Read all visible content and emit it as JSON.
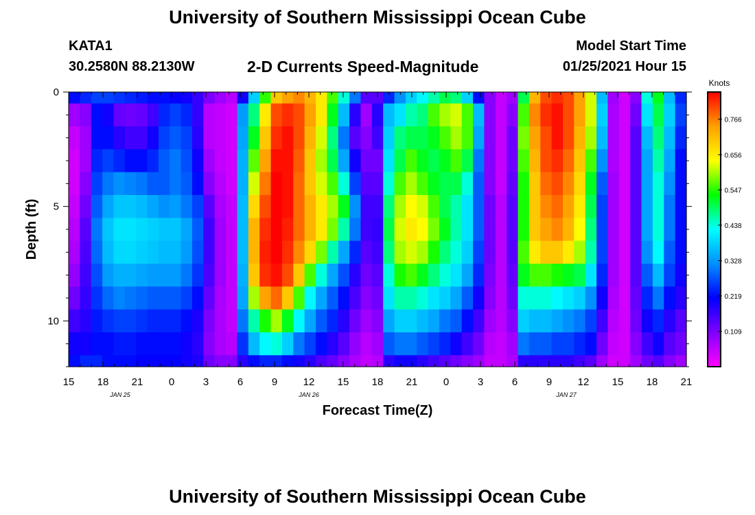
{
  "header": {
    "title": "University of Southern Mississippi Ocean Cube",
    "station": "KATA1",
    "coordinates": "30.2580N 88.2130W",
    "product": "2-D Currents Speed-Magnitude",
    "model_label": "Model Start Time",
    "model_time": "01/25/2021 Hour 15"
  },
  "footer": {
    "title": "University of Southern Mississippi Ocean Cube"
  },
  "chart_data": {
    "type": "heatmap",
    "title": "2-D Currents Speed-Magnitude",
    "xlabel": "Forecast Time(Z)",
    "ylabel": "Depth (ft)",
    "x_tick_labels": [
      "15",
      "18",
      "21",
      "0",
      "3",
      "6",
      "9",
      "12",
      "15",
      "18",
      "21",
      "0",
      "3",
      "6",
      "9",
      "12",
      "15",
      "18",
      "21"
    ],
    "date_labels": [
      {
        "label": "JAN  25",
        "hour_index": 4.5
      },
      {
        "label": "JAN  26",
        "hour_index": 21
      },
      {
        "label": "JAN  27",
        "hour_index": 43.5
      }
    ],
    "x_range_hours": [
      0,
      54
    ],
    "y_tick_labels": [
      "0",
      "5",
      "10"
    ],
    "y_tick_values": [
      0,
      5,
      10
    ],
    "ylim": [
      0,
      12
    ],
    "colorbar": {
      "unit": "Knots",
      "ticks": [
        "0.766",
        "0.656",
        "0.547",
        "0.438",
        "0.328",
        "0.219",
        "0.109"
      ],
      "tick_values": [
        0.766,
        0.656,
        0.547,
        0.438,
        0.328,
        0.219,
        0.109
      ],
      "range": [
        0,
        0.85
      ],
      "colors": [
        "#ff00ff",
        "#8000ff",
        "#0000ff",
        "#0090ff",
        "#00ffff",
        "#00ff00",
        "#ffff00",
        "#ffa000",
        "#ff0000"
      ]
    },
    "depth_levels": [
      0,
      1,
      2,
      3,
      4,
      5,
      6,
      7,
      8,
      9,
      10,
      11,
      12
    ],
    "speed_matrix": [
      [
        0.22,
        0.08,
        0.05,
        0.04,
        0.04,
        0.05,
        0.06,
        0.07,
        0.09,
        0.12,
        0.16,
        0.2,
        0.22
      ],
      [
        0.24,
        0.1,
        0.08,
        0.08,
        0.1,
        0.12,
        0.14,
        0.15,
        0.16,
        0.17,
        0.18,
        0.2,
        0.24
      ],
      [
        0.26,
        0.22,
        0.22,
        0.24,
        0.26,
        0.28,
        0.3,
        0.29,
        0.27,
        0.25,
        0.23,
        0.22,
        0.24
      ],
      [
        0.26,
        0.2,
        0.22,
        0.26,
        0.3,
        0.34,
        0.37,
        0.36,
        0.33,
        0.29,
        0.25,
        0.22,
        0.22
      ],
      [
        0.25,
        0.13,
        0.18,
        0.24,
        0.32,
        0.37,
        0.4,
        0.39,
        0.35,
        0.31,
        0.26,
        0.23,
        0.22
      ],
      [
        0.24,
        0.12,
        0.16,
        0.22,
        0.31,
        0.37,
        0.4,
        0.39,
        0.35,
        0.3,
        0.26,
        0.23,
        0.22
      ],
      [
        0.23,
        0.13,
        0.16,
        0.22,
        0.3,
        0.36,
        0.39,
        0.38,
        0.34,
        0.29,
        0.25,
        0.22,
        0.21
      ],
      [
        0.22,
        0.16,
        0.2,
        0.24,
        0.28,
        0.34,
        0.38,
        0.37,
        0.33,
        0.28,
        0.24,
        0.22,
        0.21
      ],
      [
        0.22,
        0.24,
        0.26,
        0.28,
        0.28,
        0.32,
        0.37,
        0.36,
        0.33,
        0.28,
        0.24,
        0.22,
        0.21
      ],
      [
        0.21,
        0.26,
        0.28,
        0.3,
        0.3,
        0.33,
        0.37,
        0.36,
        0.33,
        0.28,
        0.24,
        0.22,
        0.21
      ],
      [
        0.2,
        0.24,
        0.26,
        0.27,
        0.28,
        0.3,
        0.34,
        0.33,
        0.3,
        0.26,
        0.22,
        0.2,
        0.2
      ],
      [
        0.17,
        0.17,
        0.18,
        0.2,
        0.22,
        0.26,
        0.28,
        0.27,
        0.25,
        0.22,
        0.19,
        0.18,
        0.19
      ],
      [
        0.11,
        0.06,
        0.06,
        0.08,
        0.1,
        0.14,
        0.16,
        0.16,
        0.15,
        0.13,
        0.11,
        0.1,
        0.12
      ],
      [
        0.08,
        0.05,
        0.05,
        0.05,
        0.06,
        0.07,
        0.08,
        0.08,
        0.08,
        0.07,
        0.07,
        0.07,
        0.1
      ],
      [
        0.06,
        0.04,
        0.04,
        0.04,
        0.04,
        0.05,
        0.05,
        0.05,
        0.05,
        0.05,
        0.05,
        0.06,
        0.1
      ],
      [
        0.2,
        0.33,
        0.34,
        0.35,
        0.35,
        0.36,
        0.36,
        0.36,
        0.35,
        0.34,
        0.3,
        0.25,
        0.18
      ],
      [
        0.38,
        0.48,
        0.52,
        0.57,
        0.62,
        0.68,
        0.72,
        0.72,
        0.7,
        0.6,
        0.46,
        0.36,
        0.22
      ],
      [
        0.55,
        0.66,
        0.7,
        0.74,
        0.77,
        0.8,
        0.82,
        0.83,
        0.82,
        0.74,
        0.54,
        0.42,
        0.24
      ],
      [
        0.7,
        0.8,
        0.82,
        0.84,
        0.85,
        0.85,
        0.85,
        0.85,
        0.84,
        0.78,
        0.6,
        0.44,
        0.24
      ],
      [
        0.74,
        0.82,
        0.84,
        0.84,
        0.84,
        0.84,
        0.83,
        0.82,
        0.8,
        0.7,
        0.52,
        0.38,
        0.22
      ],
      [
        0.76,
        0.8,
        0.8,
        0.79,
        0.78,
        0.78,
        0.78,
        0.76,
        0.7,
        0.56,
        0.42,
        0.3,
        0.2
      ],
      [
        0.72,
        0.74,
        0.72,
        0.7,
        0.7,
        0.72,
        0.72,
        0.68,
        0.56,
        0.42,
        0.34,
        0.26,
        0.18
      ],
      [
        0.66,
        0.66,
        0.62,
        0.6,
        0.62,
        0.66,
        0.66,
        0.58,
        0.44,
        0.34,
        0.28,
        0.22,
        0.15
      ],
      [
        0.56,
        0.52,
        0.48,
        0.5,
        0.56,
        0.6,
        0.58,
        0.46,
        0.34,
        0.28,
        0.24,
        0.18,
        0.13
      ],
      [
        0.44,
        0.36,
        0.3,
        0.34,
        0.44,
        0.52,
        0.46,
        0.34,
        0.27,
        0.22,
        0.18,
        0.14,
        0.1
      ],
      [
        0.3,
        0.18,
        0.14,
        0.2,
        0.26,
        0.32,
        0.3,
        0.24,
        0.18,
        0.15,
        0.12,
        0.09,
        0.07
      ],
      [
        0.14,
        0.08,
        0.1,
        0.12,
        0.14,
        0.16,
        0.16,
        0.14,
        0.12,
        0.1,
        0.08,
        0.06,
        0.05
      ],
      [
        0.14,
        0.18,
        0.16,
        0.12,
        0.14,
        0.16,
        0.17,
        0.16,
        0.14,
        0.12,
        0.1,
        0.08,
        0.06
      ],
      [
        0.24,
        0.36,
        0.38,
        0.4,
        0.44,
        0.48,
        0.5,
        0.48,
        0.44,
        0.4,
        0.34,
        0.28,
        0.18
      ],
      [
        0.32,
        0.4,
        0.48,
        0.5,
        0.56,
        0.6,
        0.62,
        0.6,
        0.54,
        0.46,
        0.38,
        0.3,
        0.2
      ],
      [
        0.38,
        0.46,
        0.5,
        0.56,
        0.6,
        0.64,
        0.66,
        0.62,
        0.56,
        0.46,
        0.38,
        0.3,
        0.2
      ],
      [
        0.42,
        0.48,
        0.5,
        0.52,
        0.56,
        0.62,
        0.64,
        0.6,
        0.52,
        0.44,
        0.36,
        0.28,
        0.18
      ],
      [
        0.46,
        0.56,
        0.52,
        0.5,
        0.52,
        0.56,
        0.58,
        0.54,
        0.48,
        0.4,
        0.34,
        0.26,
        0.16
      ],
      [
        0.5,
        0.6,
        0.56,
        0.52,
        0.5,
        0.5,
        0.52,
        0.48,
        0.44,
        0.38,
        0.3,
        0.24,
        0.14
      ],
      [
        0.48,
        0.62,
        0.6,
        0.56,
        0.5,
        0.46,
        0.46,
        0.44,
        0.4,
        0.34,
        0.28,
        0.2,
        0.12
      ],
      [
        0.38,
        0.56,
        0.56,
        0.5,
        0.44,
        0.4,
        0.4,
        0.38,
        0.34,
        0.28,
        0.22,
        0.16,
        0.1
      ],
      [
        0.22,
        0.36,
        0.34,
        0.3,
        0.28,
        0.28,
        0.28,
        0.26,
        0.24,
        0.2,
        0.16,
        0.12,
        0.08
      ],
      [
        0.1,
        0.1,
        0.1,
        0.1,
        0.1,
        0.12,
        0.12,
        0.12,
        0.11,
        0.1,
        0.08,
        0.06,
        0.05
      ],
      [
        0.05,
        0.05,
        0.05,
        0.05,
        0.05,
        0.06,
        0.06,
        0.06,
        0.06,
        0.06,
        0.06,
        0.05,
        0.05
      ],
      [
        0.08,
        0.1,
        0.12,
        0.12,
        0.13,
        0.14,
        0.14,
        0.14,
        0.13,
        0.12,
        0.1,
        0.08,
        0.07
      ],
      [
        0.5,
        0.56,
        0.58,
        0.56,
        0.54,
        0.54,
        0.54,
        0.56,
        0.52,
        0.44,
        0.38,
        0.3,
        0.18
      ],
      [
        0.72,
        0.76,
        0.74,
        0.72,
        0.7,
        0.7,
        0.7,
        0.66,
        0.56,
        0.44,
        0.36,
        0.28,
        0.18
      ],
      [
        0.8,
        0.82,
        0.8,
        0.8,
        0.78,
        0.76,
        0.74,
        0.7,
        0.56,
        0.44,
        0.36,
        0.28,
        0.18
      ],
      [
        0.82,
        0.84,
        0.84,
        0.82,
        0.8,
        0.78,
        0.76,
        0.7,
        0.54,
        0.42,
        0.34,
        0.26,
        0.18
      ],
      [
        0.8,
        0.8,
        0.8,
        0.78,
        0.76,
        0.74,
        0.72,
        0.66,
        0.52,
        0.4,
        0.32,
        0.26,
        0.18
      ],
      [
        0.74,
        0.74,
        0.72,
        0.7,
        0.68,
        0.66,
        0.64,
        0.6,
        0.5,
        0.38,
        0.3,
        0.24,
        0.16
      ],
      [
        0.62,
        0.62,
        0.6,
        0.56,
        0.52,
        0.5,
        0.48,
        0.46,
        0.4,
        0.32,
        0.26,
        0.22,
        0.14
      ],
      [
        0.36,
        0.38,
        0.36,
        0.32,
        0.28,
        0.26,
        0.26,
        0.26,
        0.24,
        0.2,
        0.16,
        0.12,
        0.08
      ],
      [
        0.08,
        0.07,
        0.07,
        0.07,
        0.08,
        0.08,
        0.08,
        0.08,
        0.08,
        0.07,
        0.06,
        0.05,
        0.04
      ],
      [
        0.04,
        0.04,
        0.04,
        0.04,
        0.04,
        0.04,
        0.04,
        0.04,
        0.04,
        0.04,
        0.04,
        0.04,
        0.04
      ],
      [
        0.1,
        0.12,
        0.14,
        0.14,
        0.14,
        0.14,
        0.14,
        0.14,
        0.14,
        0.13,
        0.12,
        0.1,
        0.08
      ],
      [
        0.44,
        0.4,
        0.36,
        0.34,
        0.34,
        0.34,
        0.34,
        0.32,
        0.28,
        0.24,
        0.2,
        0.16,
        0.12
      ],
      [
        0.52,
        0.5,
        0.48,
        0.46,
        0.44,
        0.44,
        0.44,
        0.42,
        0.36,
        0.3,
        0.24,
        0.2,
        0.14
      ],
      [
        0.36,
        0.38,
        0.36,
        0.34,
        0.32,
        0.3,
        0.3,
        0.28,
        0.26,
        0.22,
        0.18,
        0.14,
        0.1
      ],
      [
        0.24,
        0.26,
        0.24,
        0.22,
        0.22,
        0.22,
        0.22,
        0.22,
        0.2,
        0.18,
        0.14,
        0.12,
        0.08
      ]
    ]
  }
}
